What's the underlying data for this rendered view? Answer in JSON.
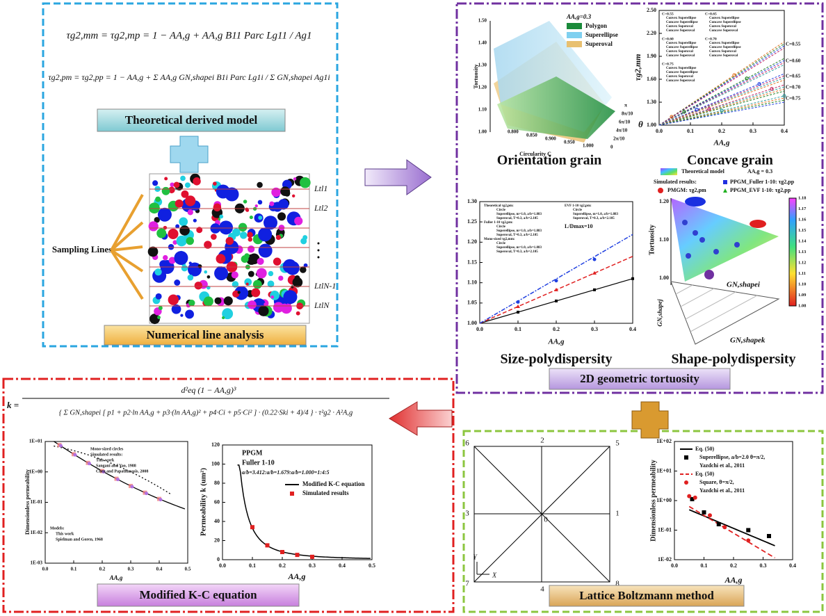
{
  "theory": {
    "formula_1": "τg2,mm = τg2,mp = 1 − AA,g + AA,g B11 Parc Lg11 / Ag1",
    "formula_2": "τg2,pm = τg2,pp = 1 − AA,g + Σ AA,g GN,shapei B1i Parc Lg1i / Σ GN,shapei Ag1i",
    "banner": "Theoretical derived model"
  },
  "numerical": {
    "sampling": "Sampling Lines",
    "lines": [
      "Ltl1",
      "Ltl2",
      "LtlN-1",
      "LtlN"
    ],
    "banner": "Numerical line analysis"
  },
  "tortuosity": {
    "banner": "2D geometric tortuosity",
    "orientation": {
      "title": "Orientation grain",
      "legend_title": "AA,g=0.3",
      "legend": [
        "Polygon",
        "Superellipse",
        "Superoval"
      ],
      "ylabel": "Tortuosity",
      "yticks": [
        "1.00",
        "1.10",
        "1.20",
        "1.30",
        "1.40",
        "1.50"
      ],
      "xlabel": "Circularity C",
      "xticks": [
        "0.800",
        "0.850",
        "0.900",
        "0.950",
        "1.000"
      ],
      "zlabel": "θ",
      "zticks": [
        "0",
        "2π/10",
        "4π/10",
        "6π/10",
        "8π/10",
        "π"
      ]
    },
    "concave": {
      "title": "Concave grain",
      "ylabel": "τg2,mm",
      "yticks": [
        "1.00",
        "1.30",
        "1.60",
        "1.90",
        "2.20",
        "2.50"
      ],
      "xlabel": "AA,g",
      "xticks": [
        "0.0",
        "0.1",
        "0.2",
        "0.3",
        "0.4"
      ],
      "curve_labels": [
        "C=0.55",
        "C=0.60",
        "C=0.65",
        "C=0.70",
        "C=0.75"
      ],
      "legend_groups": [
        "C=0.55",
        "C=0.65",
        "C=0.60",
        "C=0.70",
        "C=0.75"
      ],
      "legend_entries": [
        "Convex Superellipse",
        "Concave Superellipse",
        "Convex Superoval",
        "Concave Superoval"
      ]
    },
    "size": {
      "title": "Size-polydispersity",
      "yticks": [
        "1.00",
        "1.05",
        "1.10",
        "1.15",
        "1.20",
        "1.25",
        "1.30"
      ],
      "xlabel": "AA,g",
      "xticks": [
        "0.0",
        "0.1",
        "0.2",
        "0.3",
        "0.4"
      ],
      "legend_left": [
        "Theoretical τg2,pm:",
        "Circle",
        "Superellipse, m=1.0, a/b=1.883",
        "Superoval, T=0.3, a/b=2.105",
        "Fuller 1-10 τg2,pm:",
        "Circle",
        "Superellipse, m=1.0, a/b=1.883",
        "Superoval, T=0.3, a/b=2.105",
        "Mono-sized τg2,mm:",
        "Circle",
        "Superellipse, m=1.0, a/b=1.883",
        "Superoval, T=0.3, a/b=2.105"
      ],
      "legend_right": [
        "EVF 1-10 τg2,pm:",
        "Circle",
        "Superellipse, m=1.0, a/b=1.883",
        "Superoval, T=0.3, a/b=2.105",
        "L/Dmax=10"
      ]
    },
    "shape": {
      "title": "Shape-polydispersity",
      "legend": [
        "Theoretical model",
        "AA,g = 0.3",
        "Simulated results:",
        "PPGM_Fuller 1-10: τg2,pp",
        "PMGM: τg2,pm",
        "PPGM_EVF 1-10: τg2,pp"
      ],
      "ylabel": "Tortuosity",
      "yticks": [
        "1.00",
        "1.10",
        "1.20"
      ],
      "colorbar": [
        "1.08",
        "1.09",
        "1.10",
        "1.11",
        "1.12",
        "1.13",
        "1.14",
        "1.15",
        "1.16",
        "1.17",
        "1.18"
      ],
      "axes": [
        "GN,shapei",
        "GN,shapej",
        "GN,shapek"
      ]
    }
  },
  "kc": {
    "k": "k =",
    "numerator": "d²eq (1 − AA,g)³",
    "denominator": "{ Σ GN,shapei [ p1 + p2·ln AA,g + p3·(ln AA,g)² + p4·Ci + p5·Ci² ] · (0.22·Ski + 4)/4 } · τ²g2 · A²A,g",
    "banner": "Modified K-C equation",
    "chart1": {
      "ylabel": "Dimensionless permeability",
      "yticks": [
        "1E-03",
        "1E-02",
        "1E-01",
        "1E+00",
        "1E+01"
      ],
      "xlabel": "AA,g",
      "xticks": [
        "0.0",
        "0.1",
        "0.2",
        "0.3",
        "0.4",
        "0.5"
      ],
      "legend": [
        "Mono-sized circles",
        "Simulated results:",
        "This work",
        "Sangani and Yao, 1988",
        "Chen and Papathanasis, 2008"
      ],
      "models": [
        "Models:",
        "This work",
        "Spielman and Goren, 1968"
      ]
    },
    "chart2": {
      "ylabel": "Permeability k (um²)",
      "yticks": [
        "0",
        "20",
        "40",
        "60",
        "80",
        "100",
        "120"
      ],
      "xlabel": "AA,g",
      "xticks": [
        "0.0",
        "0.1",
        "0.2",
        "0.3",
        "0.4",
        "0.5"
      ],
      "notes": [
        "PPGM",
        "Fuller 1-10",
        "a/b=3.412:a/b=1.679:a/b=1.000=1:4:5"
      ],
      "legend": [
        "Modified K-C equation",
        "Simulated results"
      ]
    }
  },
  "lbm": {
    "banner": "Lattice Boltzmann method",
    "nodes": [
      "0",
      "1",
      "2",
      "3",
      "4",
      "5",
      "6",
      "7",
      "8"
    ],
    "axes": [
      "X",
      "Y"
    ],
    "chart": {
      "ylabel": "Dimensionless permeability",
      "yticks": [
        "1E-02",
        "1E-01",
        "1E+00",
        "1E+01",
        "1E+02"
      ],
      "xlabel": "AA,g",
      "xticks": [
        "0.0",
        "0.1",
        "0.2",
        "0.3",
        "0.4"
      ],
      "legend": [
        "Eq. (50)",
        "Superellipse, a/b=2.0 θ=π/2,",
        "Yazdchi et al., 2011",
        "Eq. (50)",
        "Square, θ=π/2,",
        "Yazdchi et al., 2011"
      ]
    }
  }
}
